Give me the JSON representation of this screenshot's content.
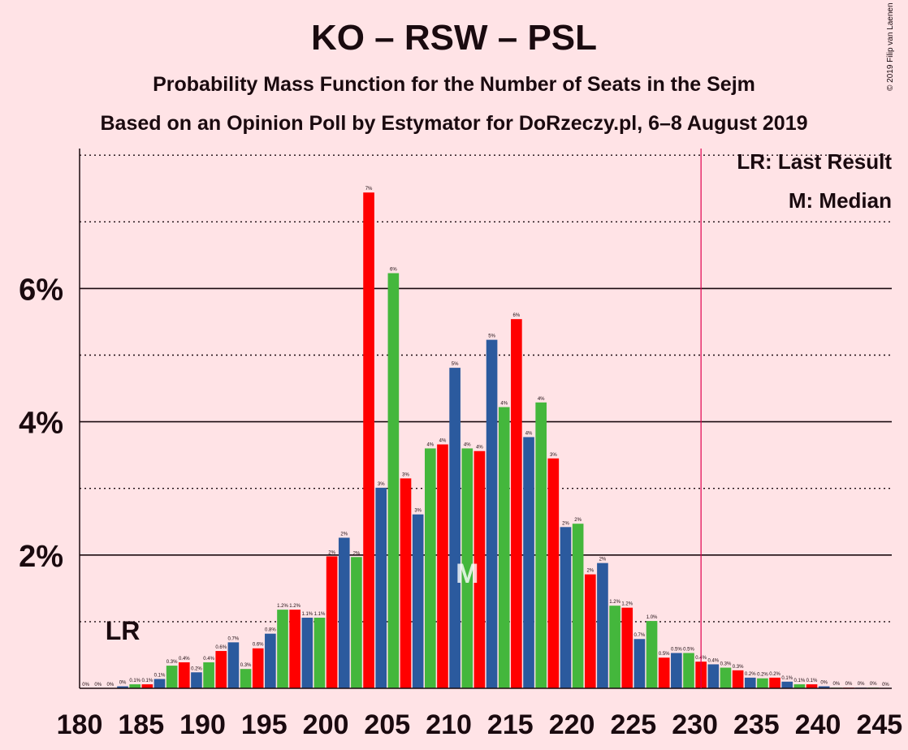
{
  "header": {
    "title": "KO – RSW – PSL",
    "subtitle": "Probability Mass Function for the Number of Seats in the Sejm",
    "source": "Based on an Opinion Poll by Estymator for DoRzeczy.pl, 6–8 August 2019",
    "copyright": "© 2019 Filip van Laenen"
  },
  "legend": {
    "last_result": "LR: Last Result",
    "median": "M: Median"
  },
  "chart_data": {
    "type": "bar",
    "title": "KO – RSW – PSL",
    "xlabel": "",
    "ylabel": "",
    "xlim": [
      180,
      245
    ],
    "ylim": [
      0,
      8.1
    ],
    "y_ticks": [
      2,
      4,
      6
    ],
    "y_tick_labels": [
      "2%",
      "4%",
      "6%"
    ],
    "x_ticks": [
      180,
      185,
      190,
      195,
      200,
      205,
      210,
      215,
      220,
      225,
      230,
      235,
      240,
      245
    ],
    "majority_line": 231,
    "last_result": 183,
    "last_result_label": "LR",
    "median": 211,
    "median_label": "M",
    "colors": [
      "#2b5a9e",
      "#44b73c",
      "#ff0000"
    ],
    "x": [
      180,
      181,
      182,
      183,
      184,
      185,
      186,
      187,
      188,
      189,
      190,
      191,
      192,
      193,
      194,
      195,
      196,
      197,
      198,
      199,
      200,
      201,
      202,
      203,
      204,
      205,
      206,
      207,
      208,
      209,
      210,
      211,
      212,
      213,
      214,
      215,
      216,
      217,
      218,
      219,
      220,
      221,
      222,
      223,
      224,
      225,
      226,
      227,
      228,
      229,
      230,
      231,
      232,
      233,
      234,
      235,
      236,
      237,
      238,
      239,
      240,
      241,
      242,
      243,
      244,
      245
    ],
    "values": [
      0,
      0,
      0,
      0.03,
      0.06,
      0.06,
      0.14,
      0.34,
      0.39,
      0.24,
      0.39,
      0.56,
      0.69,
      0.29,
      0.6,
      0.82,
      1.18,
      1.18,
      1.06,
      1.06,
      1.98,
      2.26,
      1.97,
      7.44,
      3.01,
      6.23,
      3.15,
      2.61,
      3.6,
      3.66,
      4.81,
      3.6,
      3.56,
      5.23,
      4.22,
      5.54,
      3.77,
      4.29,
      3.45,
      2.42,
      2.47,
      1.71,
      1.88,
      1.24,
      1.21,
      0.74,
      1.01,
      0.46,
      0.53,
      0.53,
      0.4,
      0.36,
      0.31,
      0.27,
      0.16,
      0.15,
      0.16,
      0.1,
      0.06,
      0.06,
      0.03,
      0.01,
      0.01,
      0.01,
      0.01,
      0
    ],
    "labels": [
      "0%",
      "0%",
      "0%",
      "0%",
      "0.1%",
      "0.1%",
      "0.1%",
      "0.3%",
      "0.4%",
      "0.2%",
      "0.4%",
      "0.6%",
      "0.7%",
      "0.3%",
      "0.6%",
      "0.8%",
      "1.2%",
      "1.2%",
      "1.1%",
      "1.1%",
      "2%",
      "2%",
      "2%",
      "7%",
      "3%",
      "6%",
      "3%",
      "3%",
      "4%",
      "4%",
      "5%",
      "4%",
      "4%",
      "5%",
      "4%",
      "6%",
      "4%",
      "4%",
      "3%",
      "2%",
      "2%",
      "2%",
      "2%",
      "1.2%",
      "1.2%",
      "0.7%",
      "1.0%",
      "0.5%",
      "0.5%",
      "0.5%",
      "0.4%",
      "0.4%",
      "0.3%",
      "0.3%",
      "0.2%",
      "0.2%",
      "0.2%",
      "0.1%",
      "0.1%",
      "0.1%",
      "0%",
      "0%",
      "0%",
      "0%",
      "0%",
      "0%"
    ]
  }
}
